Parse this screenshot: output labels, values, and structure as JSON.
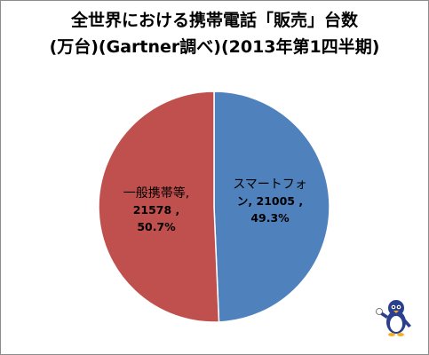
{
  "title_line1": "全世界における携帯電話「販売」台数",
  "title_line2": "(万台)(Gartner調べ)(2013年第1四半期)",
  "chart_data": {
    "type": "pie",
    "unit": "万台",
    "slices": [
      {
        "label_lines": [
          "スマートフォ",
          "ン, 21005 ,"
        ],
        "value": 21005,
        "value_text": "21005",
        "percent_text": "49.3%",
        "color": "#4f81bd"
      },
      {
        "label_lines": [
          "一般携帯等,",
          "21578 ,"
        ],
        "value": 21578,
        "value_text": "21578",
        "percent_text": "50.7%",
        "color": "#c0504d"
      }
    ]
  },
  "mascot_icon": "penguin-mascot"
}
